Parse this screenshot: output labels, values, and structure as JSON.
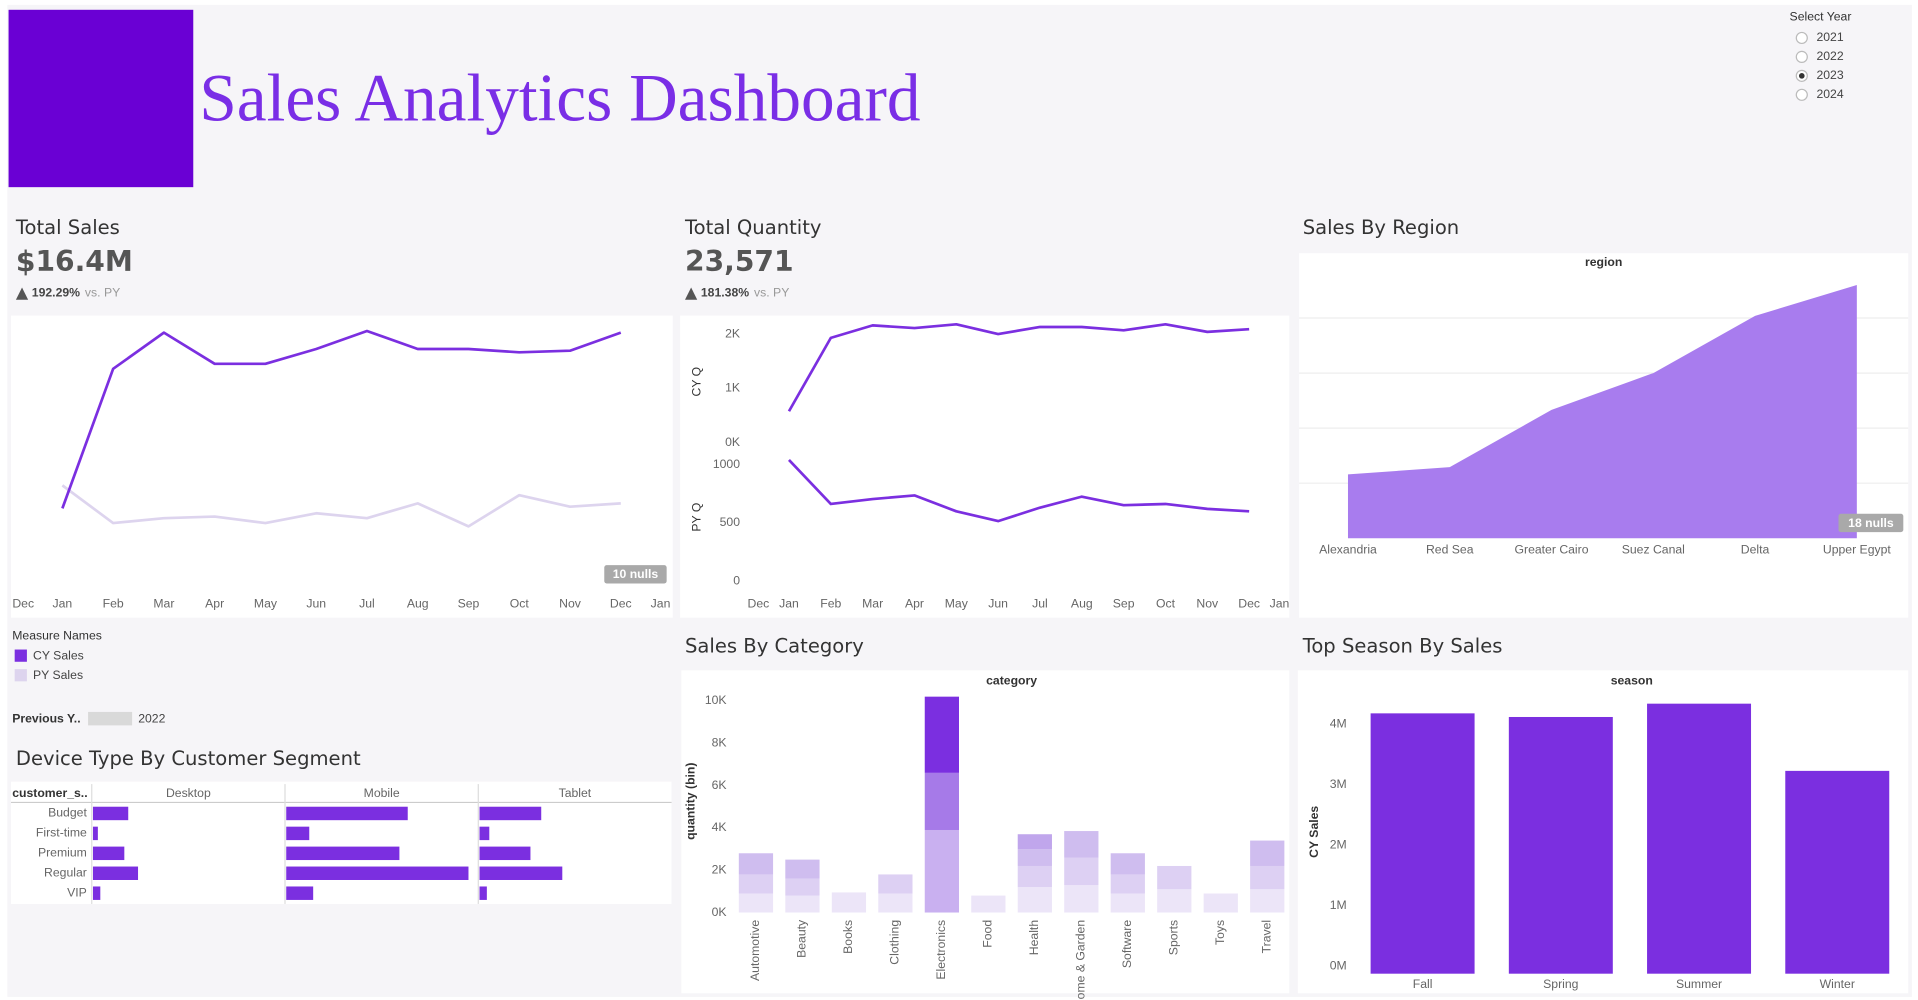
{
  "header": {
    "title": "Sales Analytics Dashboard"
  },
  "year_filter": {
    "label": "Select Year",
    "options": [
      "2021",
      "2022",
      "2023",
      "2024"
    ],
    "selected": "2023"
  },
  "kpis": [
    {
      "title": "Total Sales",
      "value": "$16.4M",
      "change": "192.29%",
      "comparison": "vs. PY"
    },
    {
      "title": "Total Quantity",
      "value": "23,571",
      "change": "181.38%",
      "comparison": "vs. PY"
    }
  ],
  "parameter": {
    "label": "Previous Y..",
    "value": "2022"
  },
  "chart_data": [
    {
      "type": "line",
      "categories": [
        "Dec",
        "Jan",
        "Feb",
        "Mar",
        "Apr",
        "May",
        "Jun",
        "Jul",
        "Aug",
        "Sep",
        "Oct",
        "Nov",
        "Dec",
        "Jan"
      ],
      "series": [
        {
          "name": "CY Sales",
          "color": "#7b2fe0",
          "values": [
            null,
            0.48,
            1.33,
            1.55,
            1.36,
            1.36,
            1.45,
            1.56,
            1.45,
            1.45,
            1.43,
            1.44,
            1.55,
            null
          ]
        },
        {
          "name": "PY Sales",
          "color": "#ddd4ee",
          "values": [
            null,
            0.62,
            0.39,
            0.42,
            0.43,
            0.39,
            0.45,
            0.42,
            0.51,
            0.37,
            0.56,
            0.49,
            0.51,
            null
          ]
        }
      ],
      "ylim": [
        0,
        1.65
      ],
      "legend_title": "Measure Names",
      "annotation": "10 nulls"
    },
    {
      "type": "line-panels",
      "categories": [
        "Dec",
        "Jan",
        "Feb",
        "Mar",
        "Apr",
        "May",
        "Jun",
        "Jul",
        "Aug",
        "Sep",
        "Oct",
        "Nov",
        "Dec",
        "Jan"
      ],
      "series": [
        {
          "name": "CY Q",
          "color": "#7b2fe0",
          "values": [
            null,
            580,
            1930,
            2160,
            2110,
            2180,
            2000,
            2130,
            2130,
            2070,
            2180,
            2040,
            2090,
            null
          ],
          "ylim": [
            0,
            2250
          ],
          "yticks": [
            {
              "value": 0,
              "label": "0K"
            },
            {
              "value": 1000,
              "label": "1K"
            },
            {
              "value": 2000,
              "label": "2K"
            }
          ]
        },
        {
          "name": "PY Q",
          "color": "#7b2fe0",
          "values": [
            null,
            1042,
            663,
            705,
            737,
            600,
            516,
            632,
            726,
            653,
            663,
            621,
            600,
            null
          ],
          "ylim": [
            0,
            1100
          ],
          "yticks": [
            0,
            500,
            1000
          ]
        }
      ]
    },
    {
      "type": "area",
      "title": "Sales By Region",
      "x_label": "region",
      "categories": [
        "Alexandria",
        "Red Sea",
        "Greater Cairo",
        "Suez Canal",
        "Delta",
        "Upper Egypt"
      ],
      "values": [
        1.16,
        1.29,
        2.33,
        3.0,
        4.04,
        4.6
      ],
      "color": "#a87cee",
      "ylim": [
        0,
        5.1
      ],
      "grid_lines": [
        1,
        2,
        3,
        4
      ],
      "annotation": "18 nulls"
    },
    {
      "type": "stacked-bar",
      "title": "Sales By Category",
      "x_label": "category",
      "y_label": "quantity (bin)",
      "categories": [
        "Automotive",
        "Beauty",
        "Books",
        "Clothing",
        "Electronics",
        "Food",
        "Health",
        "Home & Garden",
        "Software",
        "Sports",
        "Toys",
        "Travel"
      ],
      "stacks": [
        [
          900,
          900,
          1000
        ],
        [
          800,
          800,
          900
        ],
        [
          950
        ],
        [
          900,
          900
        ],
        [
          3900,
          2700,
          3600
        ],
        [
          800
        ],
        [
          1200,
          1000,
          800,
          700
        ],
        [
          1300,
          1300,
          1250
        ],
        [
          900,
          900,
          1000
        ],
        [
          1100,
          1100
        ],
        [
          900
        ],
        [
          1100,
          1100,
          1200
        ]
      ],
      "stack_colors": [
        [
          "#ece5f8",
          "#ddd0f3",
          "#cfbdef"
        ],
        [
          "#ece5f8",
          "#ddd0f3",
          "#cfbdef"
        ],
        [
          "#ece5f8"
        ],
        [
          "#ece5f8",
          "#ddd0f3"
        ],
        [
          "#c9b0f0",
          "#a67ae8",
          "#7b2fe0"
        ],
        [
          "#ece5f8"
        ],
        [
          "#ece5f8",
          "#ddd0f3",
          "#cfbdef",
          "#c0a6ec"
        ],
        [
          "#ece5f8",
          "#ddd0f3",
          "#cfbdef"
        ],
        [
          "#ece5f8",
          "#ddd0f3",
          "#cfbdef"
        ],
        [
          "#ece5f8",
          "#ddd0f3"
        ],
        [
          "#ece5f8"
        ],
        [
          "#ece5f8",
          "#ddd0f3",
          "#cfbdef"
        ]
      ],
      "ylim": [
        0,
        10600
      ],
      "yticks": [
        {
          "value": 0,
          "label": "0K"
        },
        {
          "value": 2000,
          "label": "2K"
        },
        {
          "value": 4000,
          "label": "4K"
        },
        {
          "value": 6000,
          "label": "6K"
        },
        {
          "value": 8000,
          "label": "8K"
        },
        {
          "value": 10000,
          "label": "10K"
        }
      ]
    },
    {
      "type": "bar",
      "title": "Top Season By Sales",
      "x_label": "season",
      "y_label": "CY Sales",
      "categories": [
        "Fall",
        "Spring",
        "Summer",
        "Winter"
      ],
      "values": [
        4300000,
        4240000,
        4460000,
        3350000
      ],
      "color": "#7b2fe0",
      "ylim": [
        0,
        4750000
      ],
      "yticks": [
        {
          "value": 0,
          "label": "0M"
        },
        {
          "value": 1000000,
          "label": "1M"
        },
        {
          "value": 2000000,
          "label": "2M"
        },
        {
          "value": 3000000,
          "label": "3M"
        },
        {
          "value": 4000000,
          "label": "4M"
        }
      ]
    },
    {
      "type": "bar-grid",
      "title": "Device Type By Customer Segment",
      "y_label": "customer_s..",
      "categories": [
        "Budget",
        "First-time",
        "Premium",
        "Regular",
        "VIP"
      ],
      "series": [
        {
          "name": "Desktop",
          "color": "#7b2fe0",
          "values": [
            0.72,
            0.1,
            0.64,
            0.92,
            0.15
          ]
        },
        {
          "name": "Mobile",
          "color": "#7b2fe0",
          "values": [
            2.48,
            0.47,
            2.31,
            3.72,
            0.55
          ]
        },
        {
          "name": "Tablet",
          "color": "#7b2fe0",
          "values": [
            1.26,
            0.2,
            1.04,
            1.69,
            0.15
          ]
        }
      ],
      "xlim": [
        0,
        3.92
      ]
    }
  ]
}
